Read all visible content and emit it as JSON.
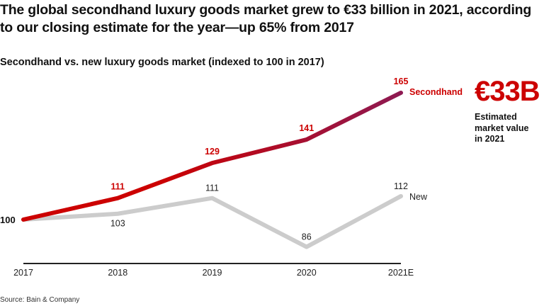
{
  "title": "The global secondhand luxury goods market grew to €33 billion in 2021, according to our closing estimate for the year—up 65% from 2017",
  "source": "Source: Bain & Company",
  "callout": {
    "value": "€33B",
    "note": "Estimated market value in 2021"
  },
  "colors": {
    "secondhand": "#cc0000",
    "secondhand_end": "#8e1a52",
    "new": "#cccccc",
    "axis": "#222222"
  },
  "chart_data": {
    "type": "line",
    "title": "Secondhand vs. new luxury goods market (indexed to 100 in 2017)",
    "categories": [
      "2017",
      "2018",
      "2019",
      "2020",
      "2021E"
    ],
    "series": [
      {
        "name": "Secondhand",
        "values": [
          100,
          111,
          129,
          141,
          165
        ]
      },
      {
        "name": "New",
        "values": [
          100,
          103,
          111,
          86,
          112
        ]
      }
    ],
    "grid": false,
    "legend": "inline labels at line ends"
  }
}
